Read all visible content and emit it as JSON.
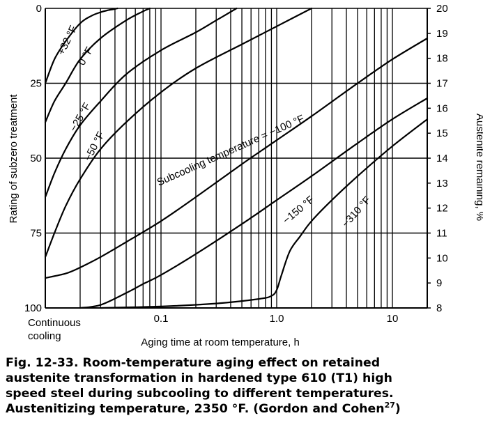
{
  "chart_data": {
    "type": "line",
    "title": "",
    "xlabel": "Aging time at room temperature, h",
    "ylabel_left": "Rating of subzero treatment",
    "ylabel_right": "Austenite remaining, %",
    "x_scale": "log",
    "xlim": [
      0.01,
      20
    ],
    "ylim_left": [
      100,
      0
    ],
    "ylim_right": [
      8,
      20
    ],
    "x_ticks": [
      {
        "value": 0.1,
        "label": "0.1"
      },
      {
        "value": 1.0,
        "label": "1.0"
      },
      {
        "value": 10,
        "label": "10"
      }
    ],
    "x_origin_label": [
      "Continuous",
      "cooling"
    ],
    "y_left_ticks": [
      {
        "value": 0,
        "label": "0"
      },
      {
        "value": 25,
        "label": "25"
      },
      {
        "value": 50,
        "label": "50"
      },
      {
        "value": 75,
        "label": "75"
      },
      {
        "value": 100,
        "label": "100"
      }
    ],
    "y_right_ticks": [
      "8",
      "9",
      "10",
      "11",
      "12",
      "13",
      "14",
      "15",
      "16",
      "17",
      "18",
      "19",
      "20"
    ],
    "grid": true,
    "series": [
      {
        "name": "+32 °F",
        "x": [
          0.01,
          0.012,
          0.015,
          0.02,
          0.025,
          0.03,
          0.035,
          0.04,
          0.042
        ],
        "y": [
          25,
          17,
          11,
          5,
          2.5,
          1.3,
          0.6,
          0.2,
          0
        ]
      },
      {
        "name": "0 °F",
        "x": [
          0.01,
          0.012,
          0.015,
          0.02,
          0.03,
          0.05,
          0.07,
          0.08
        ],
        "y": [
          38,
          31,
          25,
          17,
          10,
          4,
          1,
          0
        ]
      },
      {
        "name": "−25 °F",
        "x": [
          0.01,
          0.012,
          0.015,
          0.02,
          0.03,
          0.05,
          0.1,
          0.2,
          0.3,
          0.45
        ],
        "y": [
          63,
          55,
          47,
          39,
          31,
          22,
          14,
          8,
          4,
          0
        ]
      },
      {
        "name": "−50 °F",
        "x": [
          0.01,
          0.012,
          0.015,
          0.02,
          0.03,
          0.05,
          0.1,
          0.2,
          0.5,
          1.0,
          2.0
        ],
        "y": [
          83,
          75,
          66,
          57,
          47,
          38,
          28,
          20,
          12,
          6,
          0
        ]
      },
      {
        "name": "Subcooling temperature = −100 °F",
        "x": [
          0.01,
          0.015,
          0.02,
          0.03,
          0.05,
          0.1,
          0.2,
          0.5,
          1.0,
          2.0,
          5.0,
          10.0,
          20.0
        ],
        "y": [
          90,
          88.5,
          86.5,
          83,
          78,
          71,
          63,
          52,
          44,
          36,
          25,
          17,
          10
        ]
      },
      {
        "name": "−150 °F",
        "x": [
          0.02,
          0.03,
          0.05,
          0.07,
          0.1,
          0.2,
          0.5,
          1.0,
          2.0,
          5.0,
          10.0,
          20.0
        ],
        "y": [
          100,
          99,
          95,
          92,
          89,
          82,
          72,
          64,
          56,
          45,
          37,
          30
        ]
      },
      {
        "name": "−310 °F",
        "x": [
          0.03,
          0.1,
          0.3,
          0.7,
          0.9,
          1.0,
          1.1,
          1.3,
          1.6,
          2.0,
          3.0,
          5.0,
          10.0,
          20.0
        ],
        "y": [
          100,
          99.5,
          98.5,
          97,
          96,
          94,
          89,
          81,
          76,
          71,
          64,
          56,
          46,
          37
        ]
      }
    ],
    "curve_labels": [
      "+32 °F",
      "0 °F",
      "−25 °F",
      "−50 °F",
      "Subcooling temperature = −100 °F",
      "−150 °F",
      "−310 °F"
    ]
  },
  "caption": {
    "line1": "Fig. 12-33. Room-temperature aging effect on retained",
    "line2": "austenite transformation in hardened type 610 (T1) high",
    "line3": "speed steel during subcooling to different temperatures.",
    "line4_main": "Austenitizing temperature, 2350 °F. (Gordon and Cohen",
    "line4_ref": "27",
    "line4_end": ")"
  }
}
